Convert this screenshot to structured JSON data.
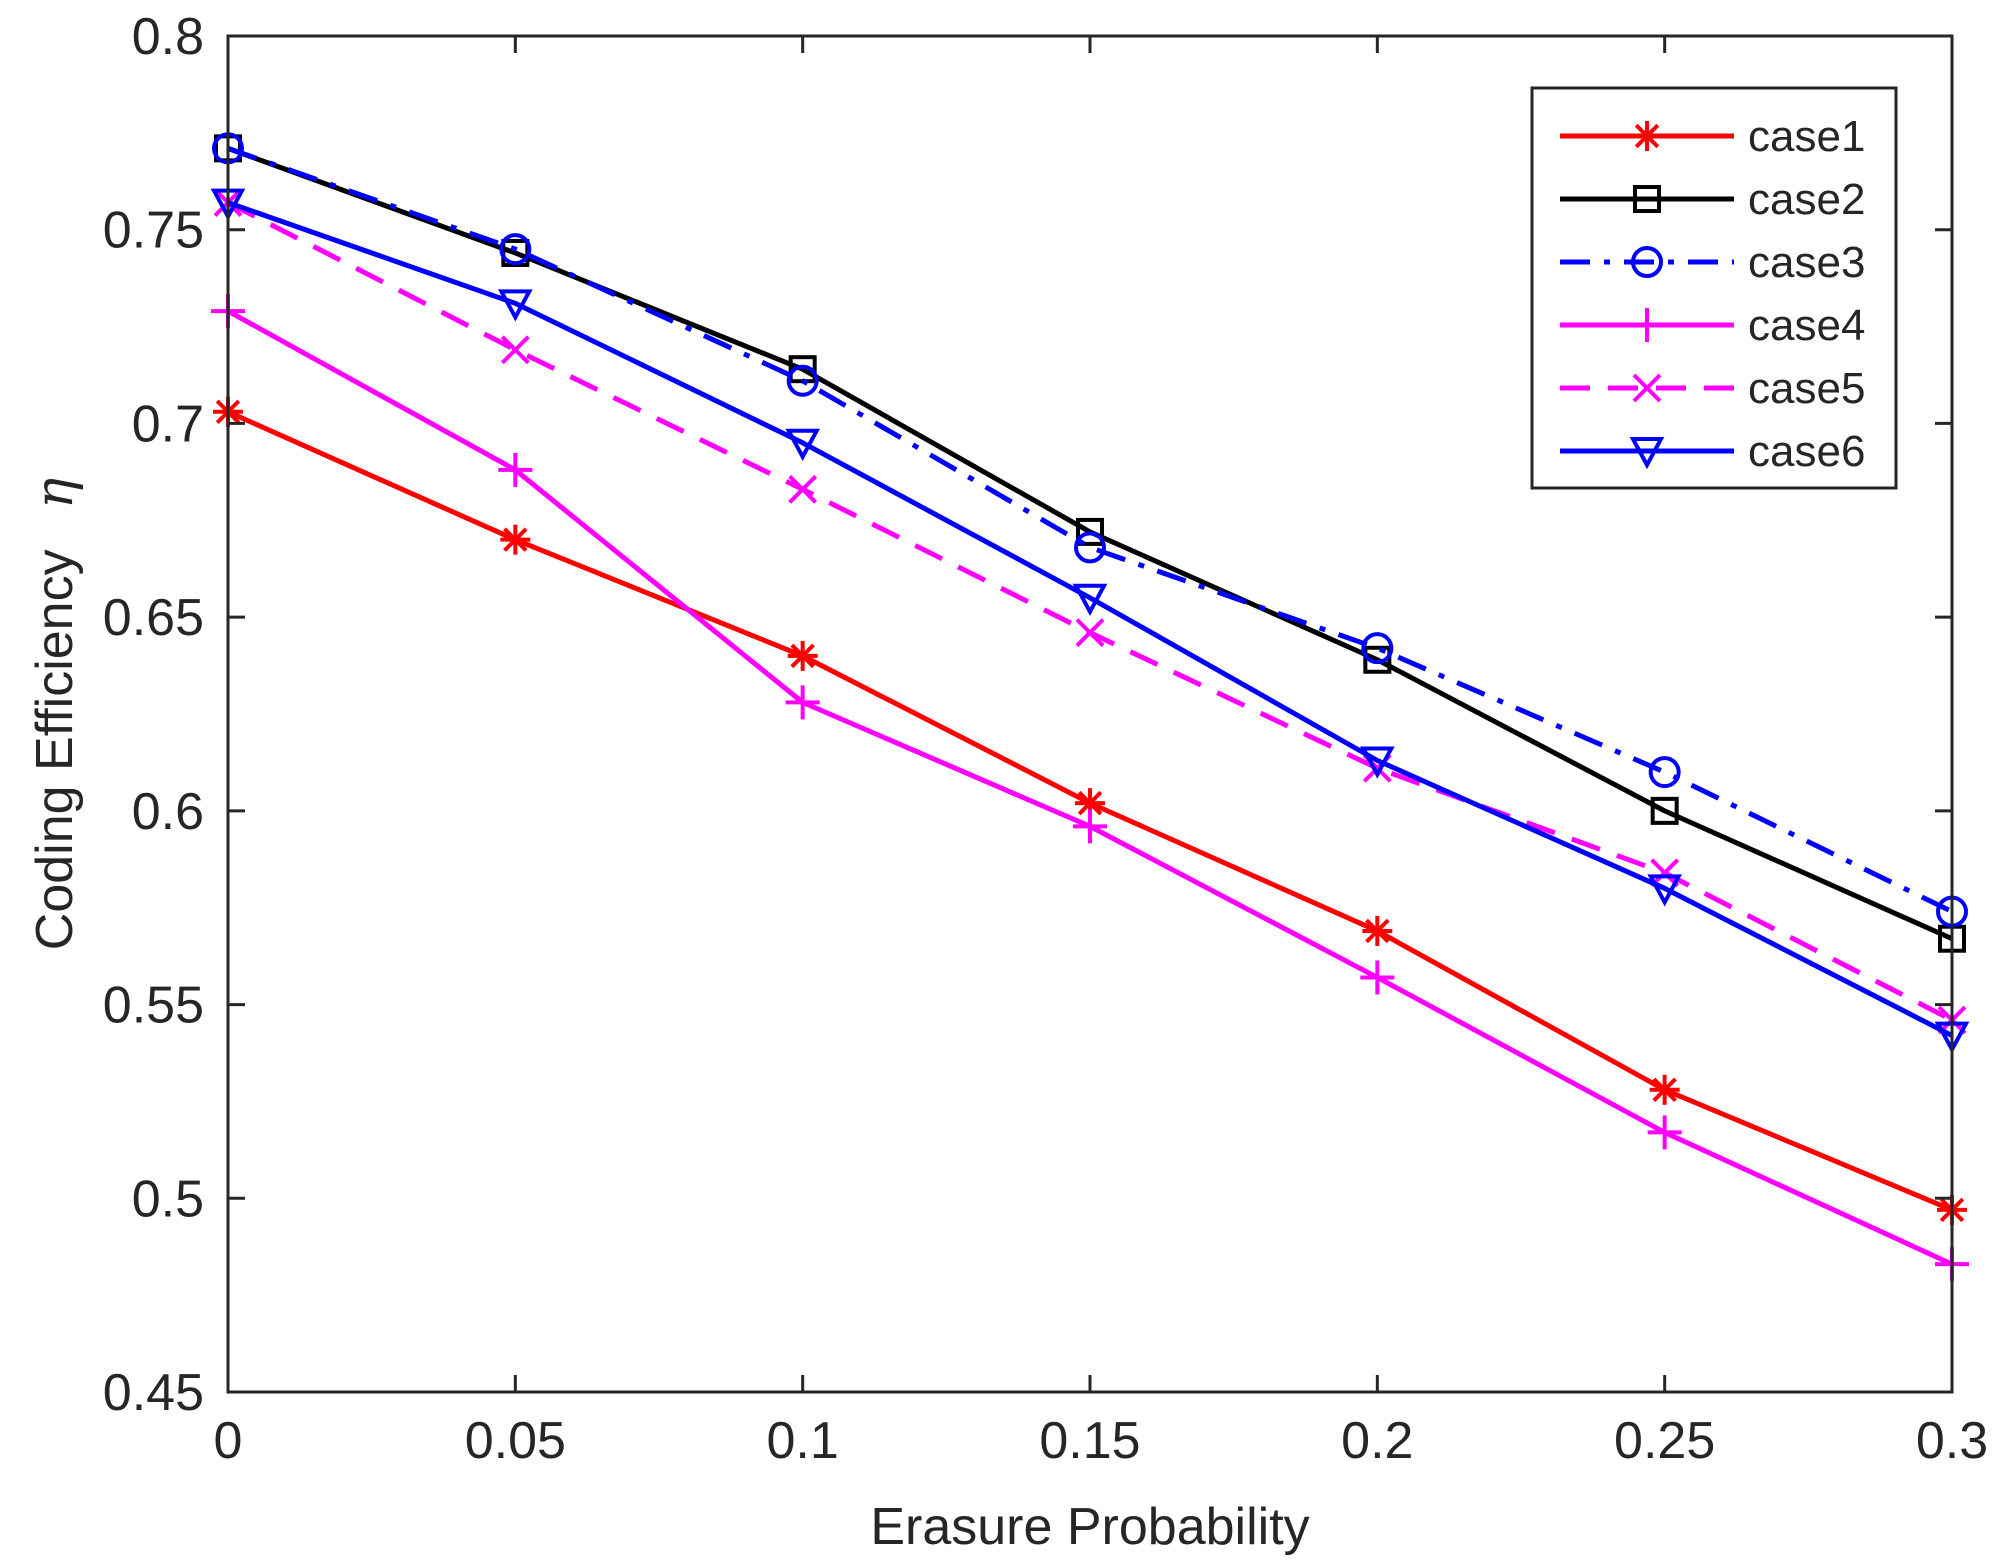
{
  "chart_data": {
    "type": "line",
    "title": "",
    "xlabel": "Erasure Probability",
    "ylabel": "Coding Efficiency",
    "ylabel_symbol": "η",
    "x": [
      0,
      0.05,
      0.1,
      0.15,
      0.2,
      0.25,
      0.3
    ],
    "xlim": [
      0,
      0.3
    ],
    "ylim": [
      0.45,
      0.8
    ],
    "xticks": [
      0,
      0.05,
      0.1,
      0.15,
      0.2,
      0.25,
      0.3
    ],
    "xtick_labels": [
      "0",
      "0.05",
      "0.1",
      "0.15",
      "0.2",
      "0.25",
      "0.3"
    ],
    "yticks": [
      0.45,
      0.5,
      0.55,
      0.6,
      0.65,
      0.7,
      0.75,
      0.8
    ],
    "ytick_labels": [
      "0.45",
      "0.5",
      "0.55",
      "0.6",
      "0.65",
      "0.7",
      "0.75",
      "0.8"
    ],
    "grid": false,
    "legend_position": "top-right",
    "series": [
      {
        "name": "case1",
        "color": "#ff0000",
        "dash": "solid",
        "marker": "asterisk",
        "values": [
          0.703,
          0.67,
          0.64,
          0.602,
          0.569,
          0.528,
          0.497
        ]
      },
      {
        "name": "case2",
        "color": "#000000",
        "dash": "solid",
        "marker": "square",
        "values": [
          0.771,
          0.744,
          0.714,
          0.672,
          0.639,
          0.6,
          0.567
        ]
      },
      {
        "name": "case3",
        "color": "#0000ff",
        "dash": "dashdot",
        "marker": "circle",
        "values": [
          0.771,
          0.745,
          0.711,
          0.668,
          0.642,
          0.61,
          0.574
        ]
      },
      {
        "name": "case4",
        "color": "#ff00ff",
        "dash": "solid",
        "marker": "plus",
        "values": [
          0.729,
          0.688,
          0.628,
          0.596,
          0.557,
          0.517,
          0.483
        ]
      },
      {
        "name": "case5",
        "color": "#ff00ff",
        "dash": "dashed",
        "marker": "x",
        "values": [
          0.757,
          0.719,
          0.683,
          0.646,
          0.611,
          0.584,
          0.546
        ]
      },
      {
        "name": "case6",
        "color": "#0000ff",
        "dash": "solid",
        "marker": "triangle-down",
        "values": [
          0.757,
          0.731,
          0.695,
          0.655,
          0.613,
          0.58,
          0.542
        ]
      }
    ]
  }
}
